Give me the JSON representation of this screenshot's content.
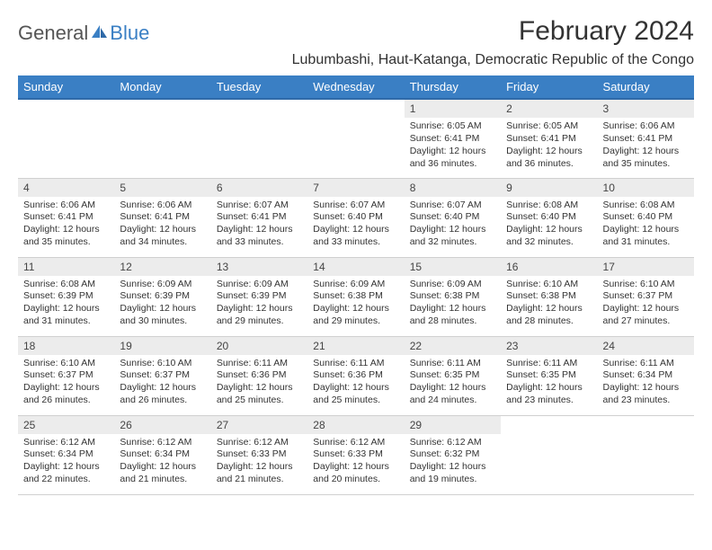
{
  "logo": {
    "text_general": "General",
    "text_blue": "Blue",
    "icon_color": "#3a7fc4"
  },
  "header": {
    "month_title": "February 2024",
    "location": "Lubumbashi, Haut-Katanga, Democratic Republic of the Congo"
  },
  "colors": {
    "header_bg": "#3a7fc4",
    "header_border": "#2f6aa8",
    "daynum_bg": "#ececec",
    "cell_border": "#d0d0d0"
  },
  "weekdays": [
    "Sunday",
    "Monday",
    "Tuesday",
    "Wednesday",
    "Thursday",
    "Friday",
    "Saturday"
  ],
  "weeks": [
    [
      {
        "day": "",
        "sunrise": "",
        "sunset": "",
        "daylight": ""
      },
      {
        "day": "",
        "sunrise": "",
        "sunset": "",
        "daylight": ""
      },
      {
        "day": "",
        "sunrise": "",
        "sunset": "",
        "daylight": ""
      },
      {
        "day": "",
        "sunrise": "",
        "sunset": "",
        "daylight": ""
      },
      {
        "day": "1",
        "sunrise": "Sunrise: 6:05 AM",
        "sunset": "Sunset: 6:41 PM",
        "daylight": "Daylight: 12 hours and 36 minutes."
      },
      {
        "day": "2",
        "sunrise": "Sunrise: 6:05 AM",
        "sunset": "Sunset: 6:41 PM",
        "daylight": "Daylight: 12 hours and 36 minutes."
      },
      {
        "day": "3",
        "sunrise": "Sunrise: 6:06 AM",
        "sunset": "Sunset: 6:41 PM",
        "daylight": "Daylight: 12 hours and 35 minutes."
      }
    ],
    [
      {
        "day": "4",
        "sunrise": "Sunrise: 6:06 AM",
        "sunset": "Sunset: 6:41 PM",
        "daylight": "Daylight: 12 hours and 35 minutes."
      },
      {
        "day": "5",
        "sunrise": "Sunrise: 6:06 AM",
        "sunset": "Sunset: 6:41 PM",
        "daylight": "Daylight: 12 hours and 34 minutes."
      },
      {
        "day": "6",
        "sunrise": "Sunrise: 6:07 AM",
        "sunset": "Sunset: 6:41 PM",
        "daylight": "Daylight: 12 hours and 33 minutes."
      },
      {
        "day": "7",
        "sunrise": "Sunrise: 6:07 AM",
        "sunset": "Sunset: 6:40 PM",
        "daylight": "Daylight: 12 hours and 33 minutes."
      },
      {
        "day": "8",
        "sunrise": "Sunrise: 6:07 AM",
        "sunset": "Sunset: 6:40 PM",
        "daylight": "Daylight: 12 hours and 32 minutes."
      },
      {
        "day": "9",
        "sunrise": "Sunrise: 6:08 AM",
        "sunset": "Sunset: 6:40 PM",
        "daylight": "Daylight: 12 hours and 32 minutes."
      },
      {
        "day": "10",
        "sunrise": "Sunrise: 6:08 AM",
        "sunset": "Sunset: 6:40 PM",
        "daylight": "Daylight: 12 hours and 31 minutes."
      }
    ],
    [
      {
        "day": "11",
        "sunrise": "Sunrise: 6:08 AM",
        "sunset": "Sunset: 6:39 PM",
        "daylight": "Daylight: 12 hours and 31 minutes."
      },
      {
        "day": "12",
        "sunrise": "Sunrise: 6:09 AM",
        "sunset": "Sunset: 6:39 PM",
        "daylight": "Daylight: 12 hours and 30 minutes."
      },
      {
        "day": "13",
        "sunrise": "Sunrise: 6:09 AM",
        "sunset": "Sunset: 6:39 PM",
        "daylight": "Daylight: 12 hours and 29 minutes."
      },
      {
        "day": "14",
        "sunrise": "Sunrise: 6:09 AM",
        "sunset": "Sunset: 6:38 PM",
        "daylight": "Daylight: 12 hours and 29 minutes."
      },
      {
        "day": "15",
        "sunrise": "Sunrise: 6:09 AM",
        "sunset": "Sunset: 6:38 PM",
        "daylight": "Daylight: 12 hours and 28 minutes."
      },
      {
        "day": "16",
        "sunrise": "Sunrise: 6:10 AM",
        "sunset": "Sunset: 6:38 PM",
        "daylight": "Daylight: 12 hours and 28 minutes."
      },
      {
        "day": "17",
        "sunrise": "Sunrise: 6:10 AM",
        "sunset": "Sunset: 6:37 PM",
        "daylight": "Daylight: 12 hours and 27 minutes."
      }
    ],
    [
      {
        "day": "18",
        "sunrise": "Sunrise: 6:10 AM",
        "sunset": "Sunset: 6:37 PM",
        "daylight": "Daylight: 12 hours and 26 minutes."
      },
      {
        "day": "19",
        "sunrise": "Sunrise: 6:10 AM",
        "sunset": "Sunset: 6:37 PM",
        "daylight": "Daylight: 12 hours and 26 minutes."
      },
      {
        "day": "20",
        "sunrise": "Sunrise: 6:11 AM",
        "sunset": "Sunset: 6:36 PM",
        "daylight": "Daylight: 12 hours and 25 minutes."
      },
      {
        "day": "21",
        "sunrise": "Sunrise: 6:11 AM",
        "sunset": "Sunset: 6:36 PM",
        "daylight": "Daylight: 12 hours and 25 minutes."
      },
      {
        "day": "22",
        "sunrise": "Sunrise: 6:11 AM",
        "sunset": "Sunset: 6:35 PM",
        "daylight": "Daylight: 12 hours and 24 minutes."
      },
      {
        "day": "23",
        "sunrise": "Sunrise: 6:11 AM",
        "sunset": "Sunset: 6:35 PM",
        "daylight": "Daylight: 12 hours and 23 minutes."
      },
      {
        "day": "24",
        "sunrise": "Sunrise: 6:11 AM",
        "sunset": "Sunset: 6:34 PM",
        "daylight": "Daylight: 12 hours and 23 minutes."
      }
    ],
    [
      {
        "day": "25",
        "sunrise": "Sunrise: 6:12 AM",
        "sunset": "Sunset: 6:34 PM",
        "daylight": "Daylight: 12 hours and 22 minutes."
      },
      {
        "day": "26",
        "sunrise": "Sunrise: 6:12 AM",
        "sunset": "Sunset: 6:34 PM",
        "daylight": "Daylight: 12 hours and 21 minutes."
      },
      {
        "day": "27",
        "sunrise": "Sunrise: 6:12 AM",
        "sunset": "Sunset: 6:33 PM",
        "daylight": "Daylight: 12 hours and 21 minutes."
      },
      {
        "day": "28",
        "sunrise": "Sunrise: 6:12 AM",
        "sunset": "Sunset: 6:33 PM",
        "daylight": "Daylight: 12 hours and 20 minutes."
      },
      {
        "day": "29",
        "sunrise": "Sunrise: 6:12 AM",
        "sunset": "Sunset: 6:32 PM",
        "daylight": "Daylight: 12 hours and 19 minutes."
      },
      {
        "day": "",
        "sunrise": "",
        "sunset": "",
        "daylight": ""
      },
      {
        "day": "",
        "sunrise": "",
        "sunset": "",
        "daylight": ""
      }
    ]
  ]
}
